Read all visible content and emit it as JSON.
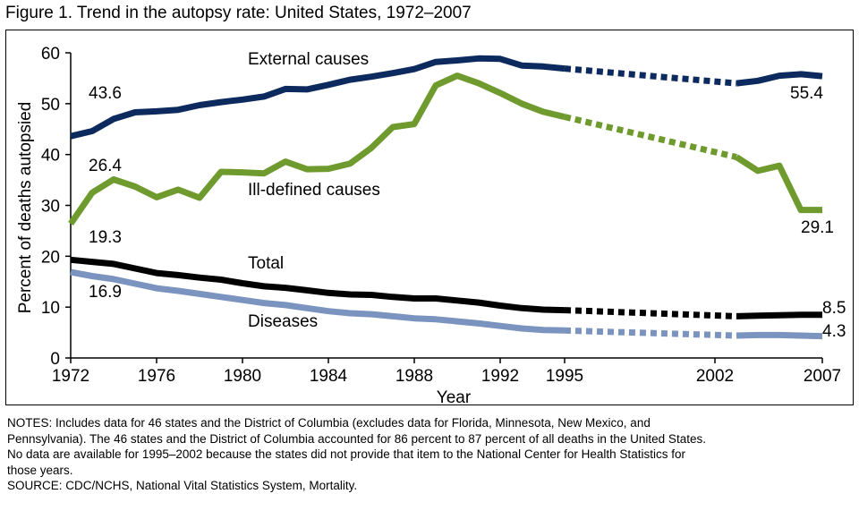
{
  "title": "Figure 1. Trend in the autopsy rate: United States, 1972–2007",
  "notes": {
    "line1": "NOTES: Includes data for 46 states and the District of Columbia (excludes data for Florida, Minnesota, New Mexico, and",
    "line2": "Pennsylvania). The 46 states and the District of Columbia accounted for 86 percent to 87 percent of all deaths in the United States.",
    "line3": "No data are available for 1995–2002 because the states did not provide that item to the National Center for Health Statistics for",
    "line4": "those years.",
    "source": "SOURCE: CDC/NCHS, National Vital Statistics System, Mortality."
  },
  "chart_data": {
    "type": "line",
    "title": "Figure 1. Trend in the autopsy rate: United States, 1972–2007",
    "xlabel": "Year",
    "ylabel": "Percent of deaths autopsied",
    "xlim": [
      1972,
      2007
    ],
    "ylim": [
      0,
      60
    ],
    "x_ticks": [
      1972,
      1976,
      1980,
      1984,
      1988,
      1992,
      1995,
      2002,
      2007
    ],
    "y_ticks": [
      0,
      10,
      20,
      30,
      40,
      50,
      60
    ],
    "gap": {
      "from": 1995,
      "to": 2003,
      "style": "dotted"
    },
    "series": [
      {
        "name": "External causes",
        "color": "#0d2a5e",
        "x": [
          1972,
          1973,
          1974,
          1975,
          1976,
          1977,
          1978,
          1979,
          1980,
          1981,
          1982,
          1983,
          1984,
          1985,
          1986,
          1987,
          1988,
          1989,
          1990,
          1991,
          1992,
          1993,
          1994,
          1995,
          2003,
          2004,
          2005,
          2006,
          2007
        ],
        "values": [
          43.6,
          44.6,
          47.0,
          48.3,
          48.5,
          48.8,
          49.7,
          50.3,
          50.8,
          51.4,
          52.9,
          52.8,
          53.7,
          54.7,
          55.3,
          56.0,
          56.8,
          58.2,
          58.5,
          58.9,
          58.8,
          57.5,
          57.3,
          56.9,
          54.0,
          54.5,
          55.5,
          55.8,
          55.4
        ]
      },
      {
        "name": "Ill-defined causes",
        "color": "#6f9a2d",
        "x": [
          1972,
          1973,
          1974,
          1975,
          1976,
          1977,
          1978,
          1979,
          1980,
          1981,
          1982,
          1983,
          1984,
          1985,
          1986,
          1987,
          1988,
          1989,
          1990,
          1991,
          1992,
          1993,
          1994,
          1995,
          2003,
          2004,
          2005,
          2006,
          2007
        ],
        "values": [
          26.4,
          32.5,
          35.1,
          33.7,
          31.6,
          33.1,
          31.5,
          36.6,
          36.5,
          36.3,
          38.6,
          37.1,
          37.2,
          38.2,
          41.3,
          45.4,
          46.0,
          53.6,
          55.5,
          54.0,
          52.1,
          50.0,
          48.4,
          47.4,
          39.5,
          36.8,
          37.8,
          29.1,
          29.1
        ]
      },
      {
        "name": "Total",
        "color": "#000000",
        "x": [
          1972,
          1973,
          1974,
          1975,
          1976,
          1977,
          1978,
          1979,
          1980,
          1981,
          1982,
          1983,
          1984,
          1985,
          1986,
          1987,
          1988,
          1989,
          1990,
          1991,
          1992,
          1993,
          1994,
          1995,
          2003,
          2004,
          2005,
          2006,
          2007
        ],
        "values": [
          19.3,
          18.9,
          18.5,
          17.6,
          16.7,
          16.3,
          15.8,
          15.4,
          14.7,
          14.1,
          13.8,
          13.3,
          12.8,
          12.5,
          12.4,
          12.0,
          11.7,
          11.7,
          11.3,
          10.9,
          10.3,
          9.8,
          9.5,
          9.4,
          8.2,
          8.3,
          8.4,
          8.5,
          8.5
        ]
      },
      {
        "name": "Diseases",
        "color": "#7b93bf",
        "x": [
          1972,
          1973,
          1974,
          1975,
          1976,
          1977,
          1978,
          1979,
          1980,
          1981,
          1982,
          1983,
          1984,
          1985,
          1986,
          1987,
          1988,
          1989,
          1990,
          1991,
          1992,
          1993,
          1994,
          1995,
          2003,
          2004,
          2005,
          2006,
          2007
        ],
        "values": [
          16.9,
          16.1,
          15.5,
          14.6,
          13.7,
          13.2,
          12.6,
          12.0,
          11.4,
          10.8,
          10.4,
          9.8,
          9.2,
          8.8,
          8.6,
          8.2,
          7.8,
          7.6,
          7.2,
          6.8,
          6.3,
          5.8,
          5.5,
          5.4,
          4.4,
          4.5,
          4.5,
          4.4,
          4.3
        ]
      }
    ],
    "series_labels": [
      "External causes",
      "Ill-defined causes",
      "Total",
      "Diseases"
    ],
    "data_labels": {
      "start": [
        "43.6",
        "26.4",
        "19.3",
        "16.9"
      ],
      "end": [
        "55.4",
        "29.1",
        "8.5",
        "4.3"
      ]
    },
    "grid": false
  }
}
